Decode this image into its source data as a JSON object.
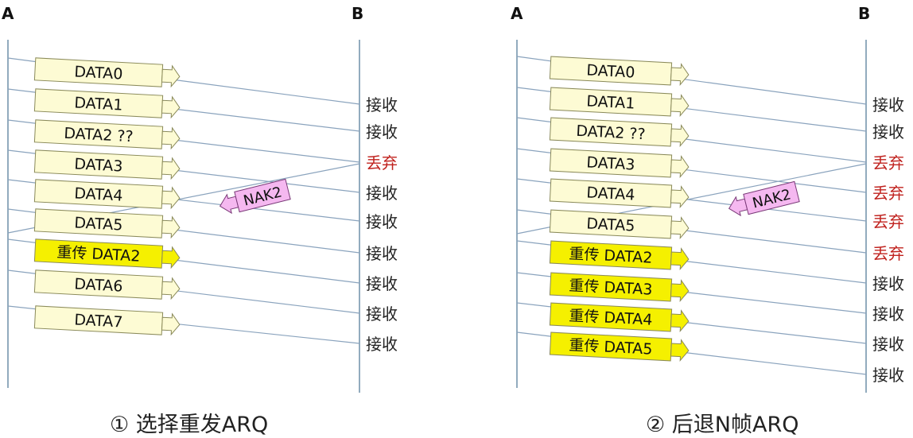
{
  "panels": [
    {
      "id": "left",
      "caption": "① 选择重发ARQ",
      "endpoint_a": "A",
      "endpoint_b": "B",
      "frames": [
        {
          "label": "DATA0",
          "retransmit": false
        },
        {
          "label": "DATA1",
          "retransmit": false
        },
        {
          "label": "DATA2 ??",
          "retransmit": false
        },
        {
          "label": "DATA3",
          "retransmit": false
        },
        {
          "label": "DATA4",
          "retransmit": false
        },
        {
          "label": "DATA5",
          "retransmit": false
        },
        {
          "label": "重传 DATA2",
          "retransmit": true
        },
        {
          "label": "DATA6",
          "retransmit": false
        },
        {
          "label": "DATA7",
          "retransmit": false
        }
      ],
      "receiver_events": [
        {
          "text": "接收",
          "discard": false
        },
        {
          "text": "接收",
          "discard": false
        },
        {
          "text": "丢弃",
          "discard": true
        },
        {
          "text": "接收",
          "discard": false
        },
        {
          "text": "接收",
          "discard": false
        },
        {
          "text": "接收",
          "discard": false
        },
        {
          "text": "接收",
          "discard": false
        },
        {
          "text": "接收",
          "discard": false
        },
        {
          "text": "接收",
          "discard": false
        }
      ],
      "nak": "NAK2"
    },
    {
      "id": "right",
      "caption": "② 后退N帧ARQ",
      "endpoint_a": "A",
      "endpoint_b": "B",
      "frames": [
        {
          "label": "DATA0",
          "retransmit": false
        },
        {
          "label": "DATA1",
          "retransmit": false
        },
        {
          "label": "DATA2 ??",
          "retransmit": false
        },
        {
          "label": "DATA3",
          "retransmit": false
        },
        {
          "label": "DATA4",
          "retransmit": false
        },
        {
          "label": "DATA5",
          "retransmit": false
        },
        {
          "label": "重传 DATA2",
          "retransmit": true
        },
        {
          "label": "重传 DATA3",
          "retransmit": true
        },
        {
          "label": "重传 DATA4",
          "retransmit": true
        },
        {
          "label": "重传 DATA5",
          "retransmit": true
        }
      ],
      "receiver_events": [
        {
          "text": "接收",
          "discard": false
        },
        {
          "text": "接收",
          "discard": false
        },
        {
          "text": "丢弃",
          "discard": true
        },
        {
          "text": "丢弃",
          "discard": true
        },
        {
          "text": "丢弃",
          "discard": true
        },
        {
          "text": "丢弃",
          "discard": true
        },
        {
          "text": "接收",
          "discard": false
        },
        {
          "text": "接收",
          "discard": false
        },
        {
          "text": "接收",
          "discard": false
        },
        {
          "text": "接收",
          "discard": false
        }
      ],
      "nak": "NAK2"
    }
  ],
  "colors": {
    "frame_fill": "#fdfbd4",
    "retransmit_fill": "#f5f000",
    "frame_border": "#8a8a5a",
    "nak_fill": "#f5b8f0",
    "nak_border": "#7a3a78",
    "timeline": "#6f8fa8",
    "transfer_line": "#8aa3bd",
    "accept_text": "#222222",
    "discard_text": "#c0221e"
  }
}
